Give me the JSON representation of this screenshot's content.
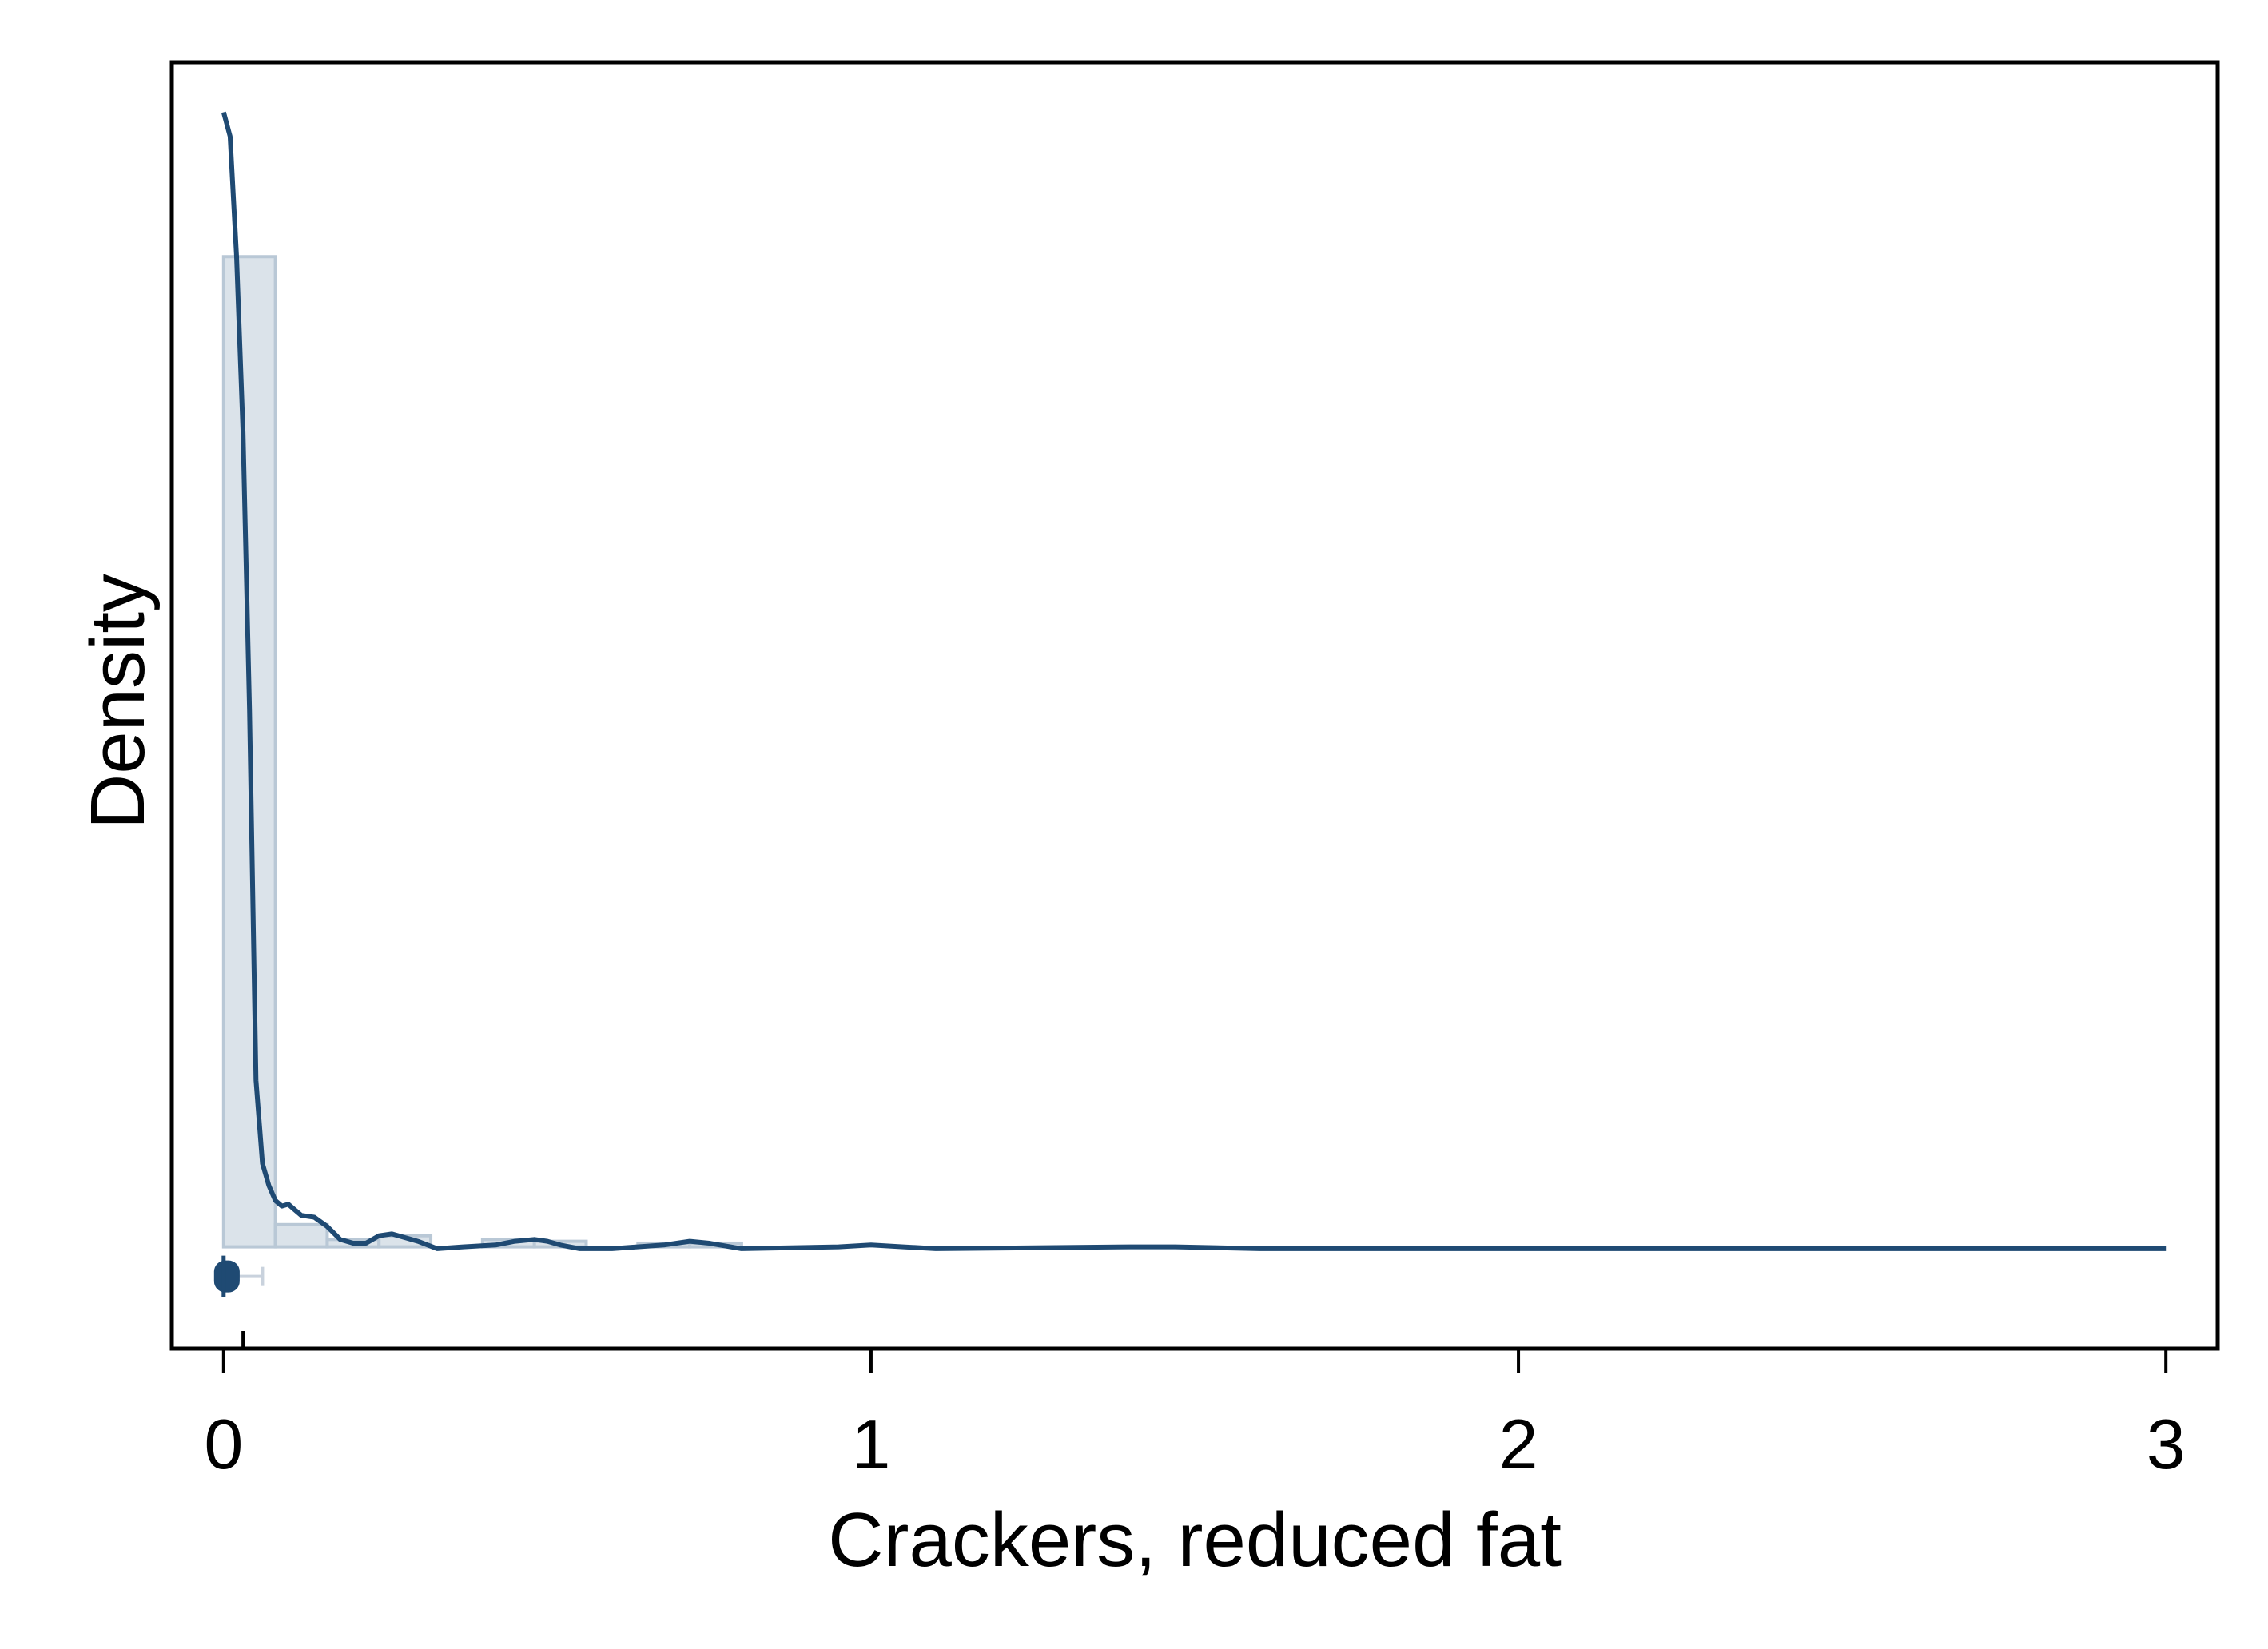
{
  "chart_data": {
    "type": "histogram",
    "title": "",
    "xlabel": "Crackers, reduced fat",
    "ylabel": "Density",
    "xlim": [
      -0.08,
      3.08
    ],
    "ylim": [
      -0.055,
      0.64
    ],
    "x_ticks": [
      0,
      1,
      2,
      3
    ],
    "x_tick_labels": [
      "0",
      "1",
      "2",
      "3"
    ],
    "y_ticks_labeled": false,
    "grid": false,
    "legend": "none",
    "histogram": {
      "bins": [
        {
          "x0": 0.0,
          "x1": 0.08,
          "density": 0.535
        },
        {
          "x0": 0.08,
          "x1": 0.16,
          "density": 0.012
        },
        {
          "x0": 0.16,
          "x1": 0.24,
          "density": 0.004
        },
        {
          "x0": 0.24,
          "x1": 0.32,
          "density": 0.006
        },
        {
          "x0": 0.32,
          "x1": 0.4,
          "density": 0.0
        },
        {
          "x0": 0.4,
          "x1": 0.48,
          "density": 0.004
        },
        {
          "x0": 0.48,
          "x1": 0.56,
          "density": 0.003
        },
        {
          "x0": 0.56,
          "x1": 0.64,
          "density": 0.0
        },
        {
          "x0": 0.64,
          "x1": 0.72,
          "density": 0.002
        },
        {
          "x0": 0.72,
          "x1": 0.8,
          "density": 0.002
        }
      ]
    },
    "kde": {
      "x": [
        0.0,
        0.01,
        0.02,
        0.03,
        0.04,
        0.05,
        0.06,
        0.07,
        0.08,
        0.09,
        0.1,
        0.11,
        0.12,
        0.14,
        0.16,
        0.18,
        0.2,
        0.22,
        0.24,
        0.26,
        0.28,
        0.3,
        0.33,
        0.37,
        0.42,
        0.45,
        0.48,
        0.5,
        0.52,
        0.55,
        0.6,
        0.68,
        0.72,
        0.75,
        0.8,
        0.95,
        1.0,
        1.05,
        1.1,
        1.4,
        1.47,
        1.6,
        2.0,
        2.05,
        2.2,
        3.0
      ],
      "y": [
        0.613,
        0.6,
        0.535,
        0.44,
        0.29,
        0.09,
        0.045,
        0.033,
        0.025,
        0.022,
        0.023,
        0.02,
        0.017,
        0.016,
        0.011,
        0.004,
        0.002,
        0.002,
        0.006,
        0.007,
        0.005,
        0.003,
        -0.001,
        0.0,
        0.001,
        0.003,
        0.004,
        0.003,
        0.001,
        -0.001,
        -0.001,
        0.001,
        0.003,
        0.002,
        -0.001,
        0.0,
        0.001,
        0.0,
        -0.001,
        0.0,
        0.0,
        -0.001,
        -0.001,
        -0.001,
        -0.001,
        -0.001
      ]
    },
    "boxplot": {
      "min": 0.0,
      "q1": 0.0,
      "median": 0.0,
      "q3": 0.01,
      "whisker_high": 0.06,
      "y": -0.016
    }
  },
  "colors": {
    "kde_line": "#1f4a73",
    "bar_fill": "#dbe3ea",
    "bar_stroke": "#b9c8d6",
    "box": "#1f4a73",
    "axis": "#000000"
  }
}
